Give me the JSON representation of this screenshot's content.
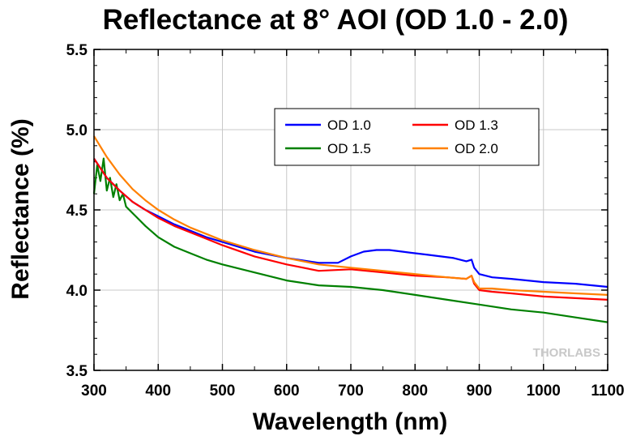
{
  "chart_data": {
    "type": "line",
    "title": "Reflectance at 8° AOI (OD 1.0 - 2.0)",
    "xlabel": "Wavelength (nm)",
    "ylabel": "Reflectance (%)",
    "xlim": [
      300,
      1100
    ],
    "ylim": [
      3.5,
      5.5
    ],
    "x_ticks": [
      "300",
      "400",
      "500",
      "600",
      "700",
      "800",
      "900",
      "1000",
      "1100"
    ],
    "y_ticks": [
      "3.5",
      "4.0",
      "4.5",
      "5.0",
      "5.5"
    ],
    "grid": true,
    "legend_position": "top-right",
    "watermark": "THORLABS",
    "series": [
      {
        "name": "OD 1.0",
        "color": "#0000ff",
        "x": [
          300,
          320,
          340,
          360,
          380,
          400,
          425,
          450,
          475,
          500,
          550,
          600,
          650,
          680,
          700,
          720,
          740,
          760,
          780,
          800,
          820,
          840,
          860,
          880,
          888,
          892,
          900,
          920,
          950,
          1000,
          1050,
          1100
        ],
        "y": [
          4.82,
          4.7,
          4.62,
          4.55,
          4.5,
          4.46,
          4.41,
          4.37,
          4.33,
          4.3,
          4.24,
          4.2,
          4.17,
          4.17,
          4.21,
          4.24,
          4.25,
          4.25,
          4.24,
          4.23,
          4.22,
          4.21,
          4.2,
          4.18,
          4.19,
          4.14,
          4.1,
          4.08,
          4.07,
          4.05,
          4.04,
          4.02
        ]
      },
      {
        "name": "OD 1.3",
        "color": "#ff0000",
        "x": [
          300,
          320,
          340,
          360,
          380,
          400,
          425,
          450,
          475,
          500,
          550,
          600,
          650,
          700,
          750,
          800,
          850,
          880,
          888,
          892,
          900,
          920,
          950,
          1000,
          1050,
          1100
        ],
        "y": [
          4.82,
          4.7,
          4.62,
          4.55,
          4.5,
          4.45,
          4.4,
          4.36,
          4.32,
          4.28,
          4.21,
          4.16,
          4.12,
          4.13,
          4.11,
          4.09,
          4.08,
          4.07,
          4.09,
          4.04,
          4.0,
          3.99,
          3.98,
          3.96,
          3.95,
          3.94
        ]
      },
      {
        "name": "OD 1.5",
        "color": "#008000",
        "x": [
          300,
          305,
          310,
          315,
          320,
          325,
          330,
          335,
          340,
          345,
          350,
          360,
          370,
          380,
          400,
          425,
          450,
          475,
          500,
          550,
          600,
          650,
          700,
          750,
          800,
          850,
          900,
          950,
          1000,
          1050,
          1100
        ],
        "y": [
          4.6,
          4.78,
          4.68,
          4.82,
          4.62,
          4.7,
          4.58,
          4.66,
          4.56,
          4.6,
          4.52,
          4.48,
          4.44,
          4.4,
          4.33,
          4.27,
          4.23,
          4.19,
          4.16,
          4.11,
          4.06,
          4.03,
          4.02,
          4.0,
          3.97,
          3.94,
          3.91,
          3.88,
          3.86,
          3.83,
          3.8
        ]
      },
      {
        "name": "OD 2.0",
        "color": "#ff8000",
        "x": [
          300,
          320,
          340,
          360,
          380,
          400,
          425,
          450,
          475,
          500,
          550,
          600,
          650,
          700,
          750,
          800,
          850,
          880,
          888,
          892,
          900,
          920,
          950,
          1000,
          1050,
          1100
        ],
        "y": [
          4.96,
          4.83,
          4.72,
          4.63,
          4.56,
          4.5,
          4.44,
          4.39,
          4.35,
          4.31,
          4.25,
          4.2,
          4.16,
          4.14,
          4.12,
          4.1,
          4.08,
          4.07,
          4.09,
          4.05,
          4.01,
          4.01,
          4.0,
          3.99,
          3.98,
          3.97
        ]
      }
    ]
  }
}
